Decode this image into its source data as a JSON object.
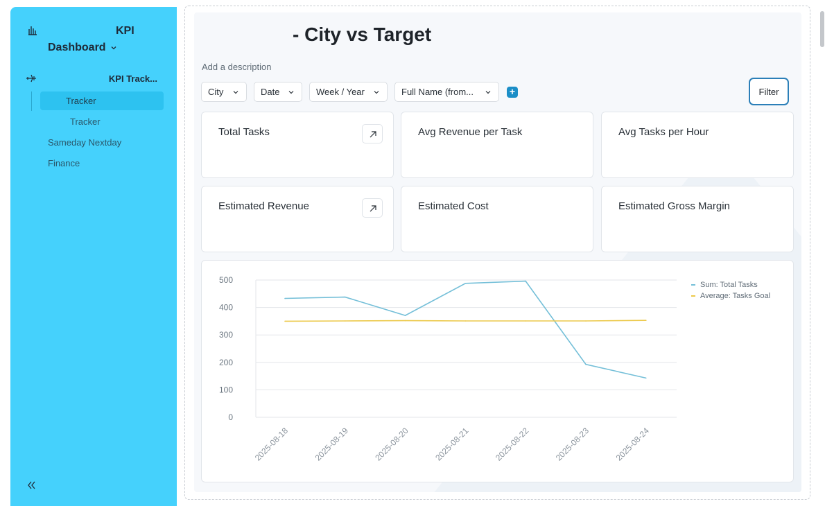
{
  "sidebar": {
    "logo_icon": "bar-chart-icon",
    "title_line1": "KPI",
    "title_line2": "Dashboard",
    "section_label": "KPI Track...",
    "items": [
      "Tracker",
      "Tracker",
      "Sameday Nextday",
      "Finance"
    ],
    "collapse_icon": "double-chevron-left-icon"
  },
  "page": {
    "title": "- City vs Target",
    "description_placeholder": "Add a description"
  },
  "filters": {
    "items": [
      "City",
      "Date",
      "Week / Year",
      "Full Name (from..."
    ],
    "add_icon": "plus-icon",
    "filter_button": "Filter"
  },
  "cards": [
    "Total Tasks",
    "Avg Revenue per Task",
    "Avg Tasks per Hour",
    "Estimated Revenue",
    "Estimated Cost",
    "Estimated Gross Margin"
  ],
  "colors": {
    "sidebar": "#45d1fc",
    "series_tasks": "#74bfd8",
    "series_goal": "#ecc94b",
    "accent": "#2b7fb8"
  },
  "chart_data": {
    "type": "line",
    "x": [
      "2025-08-18",
      "2025-08-19",
      "2025-08-20",
      "2025-08-21",
      "2025-08-22",
      "2025-08-23",
      "2025-08-24"
    ],
    "series": [
      {
        "name": "Sum: Total Tasks",
        "values": [
          433,
          438,
          371,
          488,
          496,
          193,
          143
        ]
      },
      {
        "name": "Average: Tasks Goal",
        "values": [
          350,
          351,
          352,
          351,
          351,
          351,
          353
        ]
      }
    ],
    "ylim": [
      0,
      500
    ],
    "yticks": [
      "0",
      "100",
      "200",
      "300",
      "400",
      "500"
    ],
    "grid": true,
    "legend": "top-right"
  }
}
